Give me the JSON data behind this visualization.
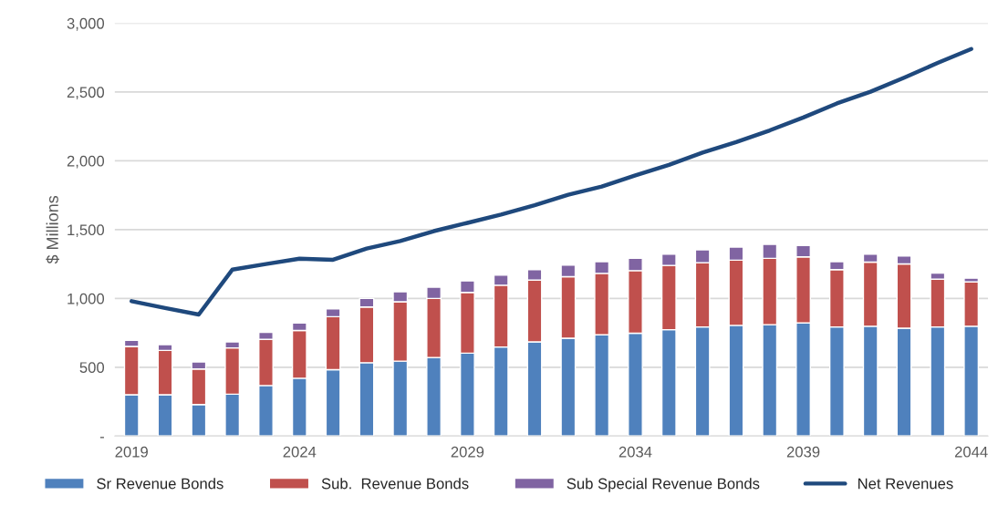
{
  "chart_data": {
    "type": "bar",
    "stacked": true,
    "ylabel": "$ Millions",
    "x": [
      2019,
      2020,
      2021,
      2022,
      2023,
      2024,
      2025,
      2026,
      2027,
      2028,
      2029,
      2030,
      2031,
      2032,
      2033,
      2034,
      2035,
      2036,
      2037,
      2038,
      2039,
      2040,
      2041,
      2042,
      2043,
      2044
    ],
    "xlim": [
      2018.5,
      2044.5
    ],
    "xticks": [
      2019,
      2024,
      2029,
      2034,
      2039,
      2044
    ],
    "ylim": [
      0,
      3000
    ],
    "yticks": [
      {
        "value": 0,
        "label": "-"
      },
      500,
      {
        "value": 1000,
        "label": "1,000"
      },
      {
        "value": 1500,
        "label": "1,500"
      },
      {
        "value": 2000,
        "label": "2,000"
      },
      {
        "value": 2500,
        "label": "2,500"
      },
      {
        "value": 3000,
        "label": "3,000"
      }
    ],
    "grid": "y",
    "legend": "bottom",
    "series": [
      {
        "name": "Sr Revenue Bonds",
        "color": "#4f81bd",
        "values": [
          300,
          300,
          229,
          304,
          367,
          420,
          482,
          533,
          544,
          571,
          602,
          647,
          684,
          711,
          736,
          747,
          773,
          793,
          804,
          809,
          822,
          793,
          798,
          784,
          793,
          798
        ]
      },
      {
        "name": "Sub.  Revenue Bonds",
        "color": "#c0504d",
        "values": [
          351,
          322,
          258,
          336,
          335,
          347,
          385,
          405,
          432,
          429,
          442,
          449,
          449,
          447,
          446,
          455,
          467,
          467,
          474,
          482,
          480,
          416,
          466,
          467,
          347,
          322
        ]
      },
      {
        "name": "Sub Special Revenue Bonds",
        "color": "#8064a2",
        "values": [
          45,
          42,
          51,
          44,
          51,
          55,
          57,
          62,
          73,
          82,
          83,
          73,
          76,
          84,
          85,
          89,
          82,
          93,
          95,
          102,
          82,
          58,
          58,
          58,
          44,
          27
        ]
      },
      {
        "name": "Net Revenues",
        "type": "line",
        "color": "#1f497d",
        "values": [
          980,
          930,
          883,
          1209,
          1250,
          1289,
          1281,
          1362,
          1417,
          1489,
          1549,
          1609,
          1677,
          1753,
          1813,
          1894,
          1970,
          2060,
          2136,
          2221,
          2315,
          2417,
          2502,
          2604,
          2711,
          2813
        ]
      }
    ]
  }
}
